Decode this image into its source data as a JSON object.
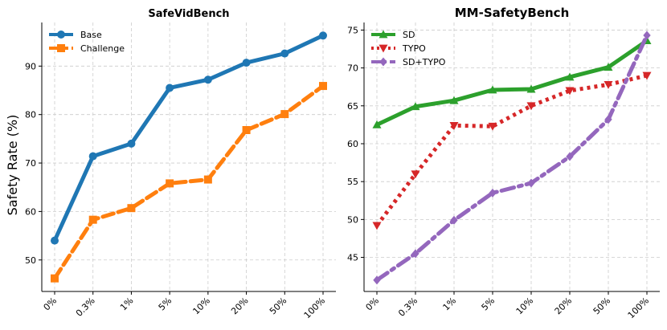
{
  "chart_data": [
    {
      "type": "line",
      "title": "SafeVidBench",
      "xlabel": "",
      "ylabel": "Safety Rate (%)",
      "categories": [
        "0%",
        "0.3%",
        "1%",
        "5%",
        "10%",
        "20%",
        "50%",
        "100%"
      ],
      "ylim": [
        43.5,
        99
      ],
      "yticks": [
        50,
        60,
        70,
        80,
        90
      ],
      "grid": true,
      "legend": "top-left",
      "series": [
        {
          "name": "Base",
          "color": "#1f77b4",
          "marker": "circle",
          "style": "solid",
          "values": [
            54.0,
            71.4,
            74.0,
            85.5,
            87.2,
            90.7,
            92.6,
            96.3
          ]
        },
        {
          "name": "Challenge",
          "color": "#ff7f0e",
          "marker": "square",
          "style": "dashed",
          "values": [
            46.2,
            58.3,
            60.7,
            65.8,
            66.6,
            76.8,
            80.1,
            85.9
          ]
        }
      ]
    },
    {
      "type": "line",
      "title": "MM-SafetyBench",
      "xlabel": "",
      "ylabel": "",
      "categories": [
        "0%",
        "0.3%",
        "1%",
        "5%",
        "10%",
        "20%",
        "50%",
        "100%"
      ],
      "ylim": [
        40.5,
        76
      ],
      "yticks": [
        45,
        50,
        55,
        60,
        65,
        70,
        75
      ],
      "grid": true,
      "legend": "top-left",
      "series": [
        {
          "name": "SD",
          "color": "#2ca02c",
          "marker": "triangle-up",
          "style": "solid",
          "values": [
            62.5,
            64.9,
            65.7,
            67.1,
            67.2,
            68.8,
            70.1,
            73.6
          ]
        },
        {
          "name": "TYPO",
          "color": "#d62728",
          "marker": "triangle-down",
          "style": "dotted",
          "values": [
            49.2,
            56.0,
            62.4,
            62.3,
            65.0,
            67.0,
            67.8,
            69.0
          ]
        },
        {
          "name": "SD+TYPO",
          "color": "#9467bd",
          "marker": "diamond",
          "style": "dashdot",
          "values": [
            42.0,
            45.5,
            49.9,
            53.5,
            54.8,
            58.3,
            63.2,
            74.3
          ]
        }
      ]
    }
  ]
}
